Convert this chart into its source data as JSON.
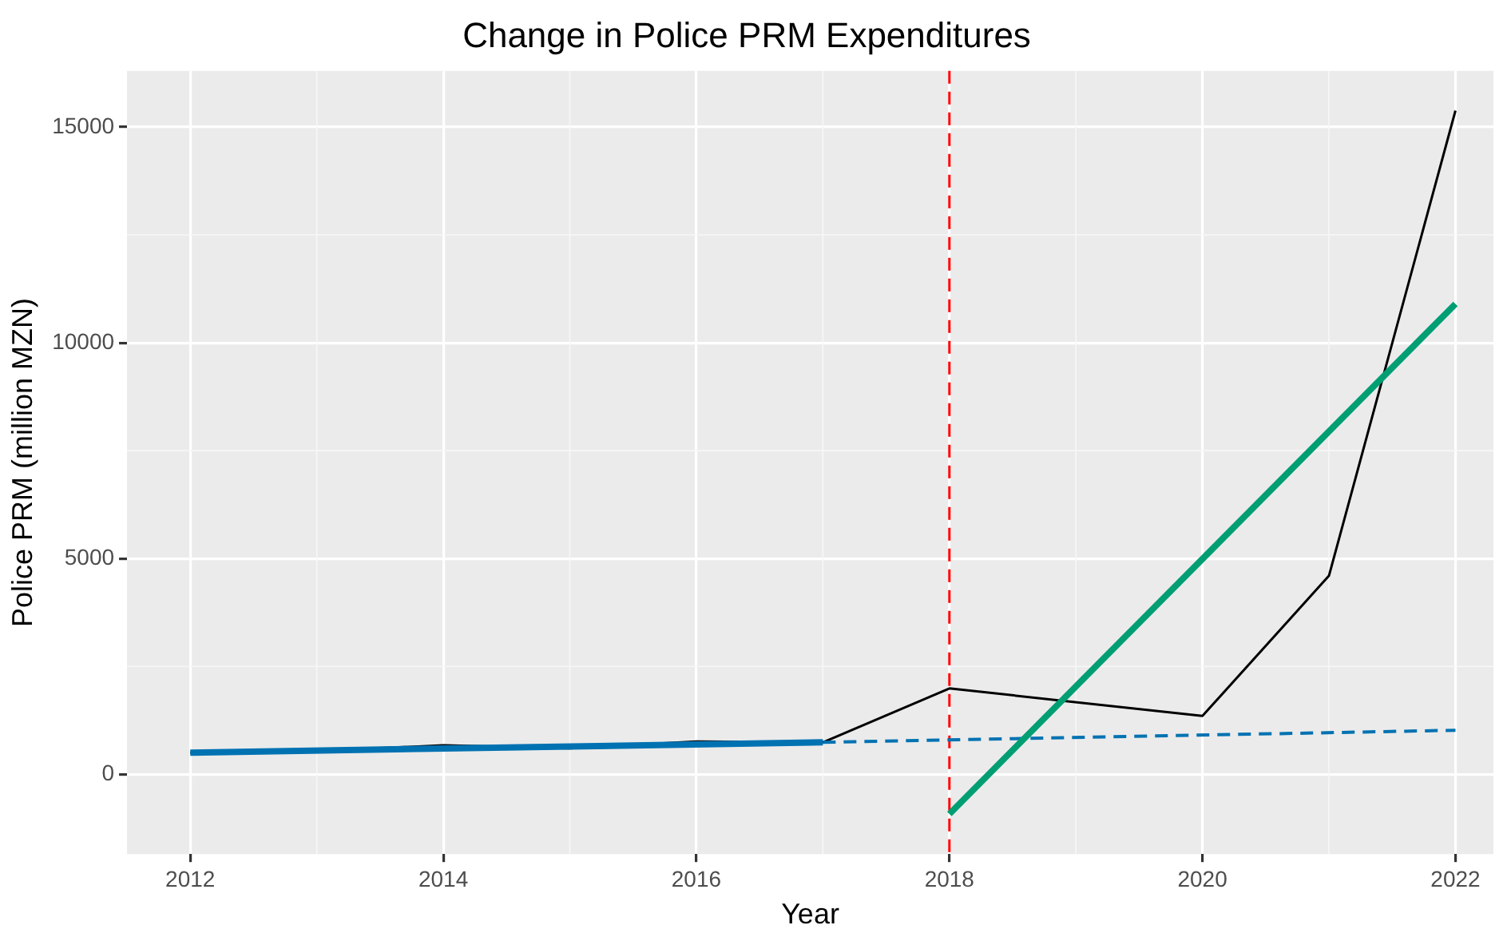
{
  "chart_data": {
    "type": "line",
    "title": "Change in Police PRM Expenditures",
    "xlabel": "Year",
    "ylabel": "Police PRM (million MZN)",
    "series": [
      {
        "x": [
          2012,
          2013,
          2014,
          2015,
          2016,
          2017,
          2018,
          2020,
          2021,
          2022
        ],
        "values": [
          500,
          540,
          670,
          600,
          760,
          740,
          1990,
          1350,
          4600,
          15380
        ],
        "color": "#000000"
      },
      {
        "x": [
          2012,
          2017
        ],
        "values": [
          500,
          740
        ],
        "color": "#0072b2",
        "line_style": "solid"
      },
      {
        "x": [
          2017,
          2022
        ],
        "values": [
          740,
          1020
        ],
        "color": "#0072b2",
        "line_style": "dashed"
      },
      {
        "x": [
          2018,
          2022
        ],
        "values": [
          -920,
          10900
        ],
        "color": "#009e73",
        "line_style": "solid"
      }
    ],
    "xlim": [
      2011.5,
      2022.3
    ],
    "xticks": [
      2012,
      2014,
      2016,
      2018,
      2020,
      2022
    ],
    "ylim": [
      -1850,
      16300
    ],
    "yticks": [
      0,
      5000,
      10000,
      15000
    ],
    "ref_lines": [
      {
        "axis": "x",
        "value": 2018,
        "color": "#ff0000",
        "line_style": "dashed"
      }
    ],
    "grid": true,
    "legend": false,
    "marker": "none"
  }
}
